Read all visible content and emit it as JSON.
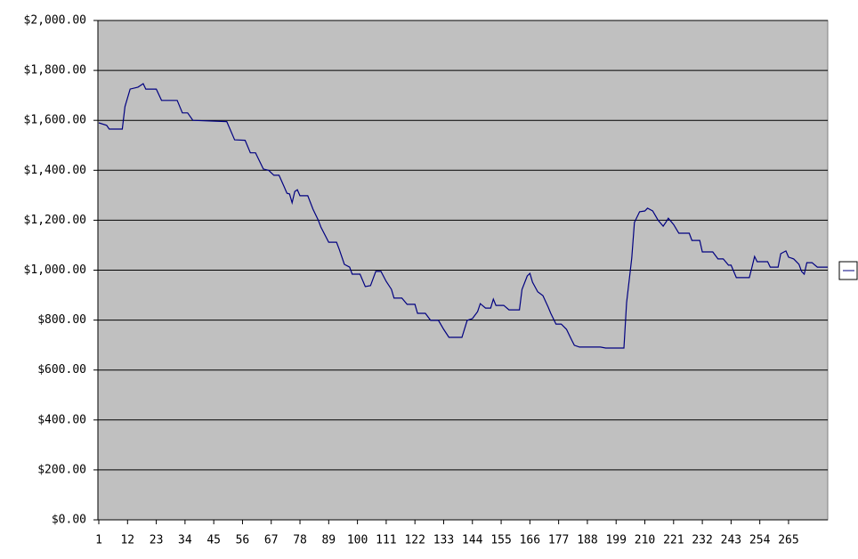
{
  "chart_data": {
    "type": "line",
    "x": [
      1,
      4,
      5,
      10,
      11,
      13,
      16,
      18,
      19,
      23,
      25,
      31,
      33,
      35,
      37,
      50,
      53,
      57,
      59,
      61,
      64,
      66,
      68,
      70,
      72,
      73,
      74,
      75,
      76,
      77,
      78,
      81,
      83,
      85,
      86,
      89,
      92,
      93,
      95,
      97,
      98,
      101,
      103,
      105,
      107,
      109,
      111,
      113,
      114,
      117,
      119,
      122,
      123,
      126,
      128,
      131,
      133,
      135,
      140,
      142,
      144,
      146,
      147,
      149,
      151,
      152,
      153,
      156,
      158,
      162,
      163,
      165,
      166,
      167,
      169,
      171,
      173,
      174,
      176,
      178,
      180,
      182,
      183,
      185,
      193,
      195,
      202,
      203,
      205,
      206,
      208,
      210,
      211,
      213,
      214,
      215,
      217,
      218,
      219,
      221,
      223,
      227,
      228,
      231,
      232,
      236,
      238,
      240,
      242,
      243,
      245,
      250,
      251,
      252,
      253,
      257,
      258,
      261,
      262,
      264,
      265,
      267,
      269,
      270,
      271,
      272,
      274,
      276,
      280
    ],
    "series": [
      {
        "color": "#000080",
        "values": [
          1590,
          1580,
          1565,
          1565,
          1655,
          1725,
          1733,
          1747,
          1725,
          1725,
          1680,
          1680,
          1630,
          1630,
          1600,
          1595,
          1522,
          1520,
          1470,
          1470,
          1405,
          1400,
          1380,
          1380,
          1333,
          1308,
          1305,
          1270,
          1315,
          1322,
          1298,
          1298,
          1244,
          1200,
          1173,
          1112,
          1112,
          1084,
          1023,
          1012,
          984,
          984,
          934,
          938,
          995,
          995,
          955,
          923,
          888,
          888,
          863,
          863,
          827,
          827,
          799,
          799,
          763,
          731,
          731,
          799,
          806,
          834,
          866,
          848,
          848,
          884,
          859,
          859,
          841,
          841,
          923,
          977,
          987,
          952,
          913,
          898,
          852,
          827,
          784,
          784,
          763,
          720,
          699,
          692,
          692,
          688,
          688,
          870,
          1048,
          1191,
          1234,
          1237,
          1248,
          1237,
          1219,
          1201,
          1176,
          1191,
          1208,
          1183,
          1148,
          1148,
          1119,
          1119,
          1073,
          1073,
          1045,
          1045,
          1020,
          1020,
          970,
          970,
          1012,
          1055,
          1034,
          1034,
          1012,
          1012,
          1066,
          1077,
          1052,
          1045,
          1023,
          995,
          984,
          1030,
          1030,
          1012,
          1012
        ]
      }
    ],
    "xlim": [
      1,
      280
    ],
    "xticks": [
      1,
      12,
      23,
      34,
      45,
      56,
      67,
      78,
      89,
      100,
      111,
      122,
      133,
      144,
      155,
      166,
      177,
      188,
      199,
      210,
      221,
      232,
      243,
      254,
      265
    ],
    "ylim": [
      0,
      2000
    ],
    "yticks": [
      {
        "value": 0,
        "label": "$0.00"
      },
      {
        "value": 200,
        "label": "$200.00"
      },
      {
        "value": 400,
        "label": "$400.00"
      },
      {
        "value": 600,
        "label": "$600.00"
      },
      {
        "value": 800,
        "label": "$800.00"
      },
      {
        "value": 1000,
        "label": "$1,000.00"
      },
      {
        "value": 1200,
        "label": "$1,200.00"
      },
      {
        "value": 1400,
        "label": "$1,400.00"
      },
      {
        "value": 1600,
        "label": "$1,600.00"
      },
      {
        "value": 1800,
        "label": "$1,800.00"
      },
      {
        "value": 2000,
        "label": "$2,000.00"
      }
    ],
    "grid": true
  }
}
